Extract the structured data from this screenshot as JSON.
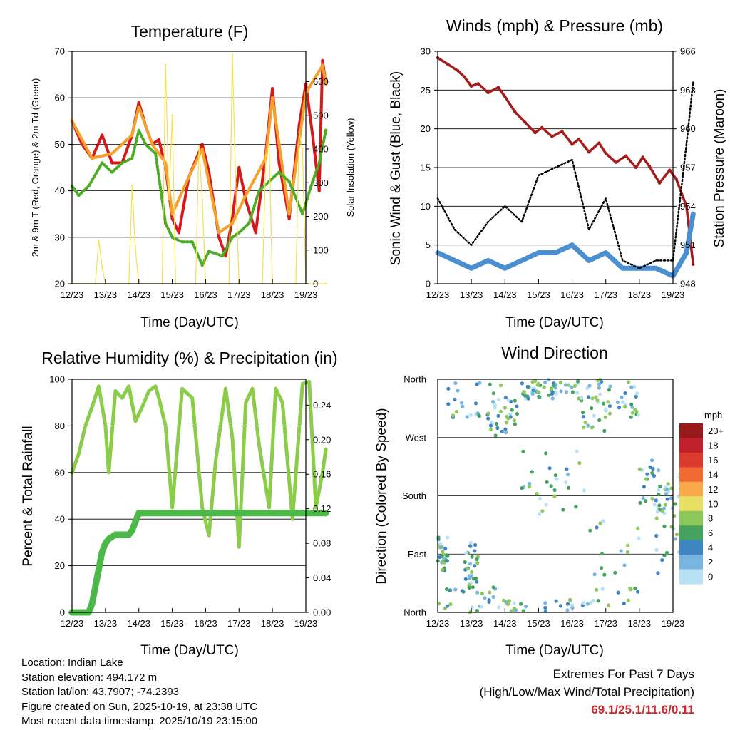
{
  "chart_data": [
    {
      "type": "line",
      "title": "Temperature (F)",
      "xlabel": "Time (Day/UTC)",
      "ylabel": "2m & 9m T (Red, Orange) & 2m Td (Green)",
      "ylabel_right": "Solar Insolation (Yellow)",
      "categories": [
        "12/23",
        "13/23",
        "14/23",
        "15/23",
        "16/23",
        "17/23",
        "18/23",
        "19/23"
      ],
      "ylim": [
        20,
        70
      ],
      "yticks": [
        20,
        30,
        40,
        50,
        60,
        70
      ],
      "y2lim": [
        0,
        690
      ],
      "y2ticks": [
        0,
        100,
        200,
        300,
        400,
        500,
        600
      ],
      "series": [
        {
          "name": "2m T",
          "color": "#d7191c",
          "x": [
            0,
            0.3,
            0.6,
            0.9,
            1.2,
            1.5,
            1.8,
            2.0,
            2.2,
            2.4,
            2.6,
            2.8,
            3.0,
            3.2,
            3.5,
            3.9,
            4.1,
            4.4,
            4.6,
            4.8,
            5.0,
            5.2,
            5.5,
            5.8,
            6.0,
            6.2,
            6.5,
            6.8,
            7.0,
            7.2,
            7.4,
            7.5,
            7.6
          ],
          "values": [
            55,
            50,
            47,
            52,
            46,
            46,
            52,
            59,
            54,
            50,
            51,
            45,
            34,
            31,
            43,
            50,
            44,
            30,
            26,
            34,
            45,
            38,
            31,
            48,
            62,
            46,
            34,
            54,
            63,
            52,
            40,
            68,
            63
          ]
        },
        {
          "name": "9m T",
          "color": "#f4a02c",
          "x": [
            0,
            0.6,
            1.2,
            1.8,
            2.0,
            2.4,
            2.8,
            3.0,
            3.5,
            3.9,
            4.4,
            4.8,
            5.2,
            5.8,
            6.0,
            6.5,
            7.0,
            7.5,
            7.6
          ],
          "values": [
            55,
            47,
            48,
            52,
            58,
            50,
            46,
            35,
            43,
            49,
            31,
            33,
            39,
            47,
            60,
            35,
            61,
            67,
            63
          ]
        },
        {
          "name": "2m Td",
          "color": "#4dac26",
          "x": [
            0,
            0.2,
            0.5,
            0.9,
            1.2,
            1.5,
            1.8,
            2.0,
            2.2,
            2.5,
            2.8,
            3.0,
            3.3,
            3.6,
            3.9,
            4.1,
            4.5,
            4.8,
            5.0,
            5.3,
            5.6,
            5.9,
            6.2,
            6.5,
            6.9,
            7.2,
            7.4,
            7.6
          ],
          "values": [
            41,
            39,
            41,
            46,
            44,
            46,
            47,
            53,
            50,
            48,
            33,
            30,
            29,
            29,
            24,
            27,
            26,
            30,
            31,
            33,
            40,
            42,
            44,
            42,
            35,
            42,
            46,
            53
          ]
        },
        {
          "name": "Solar Insolation",
          "color": "#f5e050",
          "axis": "right",
          "x": [
            0,
            0.7,
            0.8,
            0.9,
            1.0,
            1.7,
            1.8,
            1.9,
            2.0,
            2.7,
            2.8,
            2.9,
            3.0,
            3.1,
            3.7,
            3.8,
            3.9,
            4.0,
            4.7,
            4.8,
            4.9,
            5.0,
            5.7,
            5.8,
            5.9,
            6.0,
            6.7,
            6.8,
            6.9,
            7.0,
            7.6
          ],
          "values": [
            0,
            0,
            130,
            50,
            0,
            0,
            290,
            100,
            0,
            0,
            650,
            250,
            500,
            0,
            0,
            410,
            250,
            0,
            0,
            680,
            300,
            0,
            0,
            380,
            420,
            0,
            0,
            450,
            400,
            0,
            0
          ]
        }
      ]
    },
    {
      "type": "line",
      "title": "Winds (mph) & Pressure (mb)",
      "xlabel": "Time (Day/UTC)",
      "ylabel": "Sonic Wind & Gust (Blue, Black)",
      "ylabel_right": "Station Pressure (Maroon)",
      "categories": [
        "12/23",
        "13/23",
        "14/23",
        "15/23",
        "16/23",
        "17/23",
        "18/23",
        "19/23"
      ],
      "ylim": [
        0,
        30
      ],
      "yticks": [
        0,
        5,
        10,
        15,
        20,
        25,
        30
      ],
      "y2lim": [
        948,
        966
      ],
      "y2ticks": [
        948,
        951,
        954,
        957,
        960,
        963,
        966
      ],
      "series": [
        {
          "name": "Station Pressure",
          "color": "#a51c1c",
          "axis": "right",
          "x": [
            0,
            0.3,
            0.6,
            0.8,
            1.0,
            1.2,
            1.5,
            1.8,
            2.0,
            2.3,
            2.6,
            2.9,
            3.1,
            3.4,
            3.7,
            4.0,
            4.2,
            4.5,
            4.8,
            5.0,
            5.3,
            5.6,
            5.9,
            6.1,
            6.3,
            6.6,
            6.9,
            7.1,
            7.4,
            7.6
          ],
          "values": [
            965.5,
            965,
            964.5,
            964,
            963.3,
            963.5,
            962.8,
            963.2,
            962.5,
            961.3,
            960.5,
            959.7,
            960.1,
            959.4,
            959.8,
            958.8,
            959.2,
            958.2,
            958.9,
            958.1,
            957.4,
            957.9,
            957.0,
            957.8,
            957.1,
            955.8,
            956.8,
            956.1,
            954.0,
            949.5
          ]
        },
        {
          "name": "Sonic Wind",
          "color": "#4a90d0",
          "x": [
            0,
            0.5,
            1.0,
            1.5,
            2.0,
            2.5,
            3.0,
            3.5,
            4.0,
            4.5,
            5.0,
            5.5,
            6.0,
            6.5,
            7.0,
            7.4,
            7.6
          ],
          "values": [
            4,
            3,
            2,
            3,
            2,
            3,
            4,
            4,
            5,
            3,
            4,
            2,
            2,
            2,
            1,
            4,
            9
          ]
        },
        {
          "name": "Gust",
          "color": "#000000",
          "x": [
            0,
            0.5,
            1.0,
            1.5,
            2.0,
            2.5,
            3.0,
            3.5,
            4.0,
            4.5,
            5.0,
            5.5,
            6.0,
            6.5,
            7.0,
            7.4,
            7.6
          ],
          "values": [
            11,
            7,
            5,
            8,
            10,
            8,
            14,
            15,
            16,
            7,
            11,
            3,
            2,
            3,
            3,
            18,
            26
          ]
        }
      ]
    },
    {
      "type": "line",
      "title": "Relative Humidity (%) & Precipitation (in)",
      "xlabel": "Time (Day/UTC)",
      "ylabel": "Percent & Total Rainfall",
      "categories": [
        "12/23",
        "13/23",
        "14/23",
        "15/23",
        "16/23",
        "17/23",
        "18/23",
        "19/23"
      ],
      "ylim": [
        0,
        100
      ],
      "yticks": [
        0,
        20,
        40,
        60,
        80,
        100
      ],
      "y2lim": [
        0,
        0.27
      ],
      "y2ticks": [
        0.0,
        0.04,
        0.08,
        0.12,
        0.16,
        0.2,
        0.24
      ],
      "series": [
        {
          "name": "Relative Humidity",
          "color": "#8ccc4b",
          "x": [
            0,
            0.2,
            0.4,
            0.6,
            0.8,
            1.0,
            1.1,
            1.3,
            1.5,
            1.7,
            1.9,
            2.1,
            2.3,
            2.5,
            2.6,
            2.8,
            3.0,
            3.3,
            3.6,
            3.9,
            4.1,
            4.3,
            4.6,
            4.8,
            5.0,
            5.2,
            5.4,
            5.6,
            5.9,
            6.1,
            6.3,
            6.6,
            6.9,
            7.1,
            7.3,
            7.5,
            7.6
          ],
          "values": [
            60,
            68,
            80,
            88,
            97,
            80,
            60,
            95,
            92,
            97,
            82,
            88,
            95,
            97,
            92,
            80,
            45,
            96,
            92,
            45,
            33,
            65,
            96,
            75,
            28,
            90,
            96,
            72,
            45,
            96,
            90,
            40,
            98,
            99,
            45,
            60,
            70
          ]
        },
        {
          "name": "Total Rainfall",
          "color": "#4cb848",
          "axis": "right",
          "x": [
            0,
            0.5,
            0.6,
            0.7,
            0.8,
            0.9,
            1.0,
            1.1,
            1.3,
            1.5,
            1.7,
            1.8,
            1.9,
            2.0,
            7.6
          ],
          "values": [
            0,
            0,
            0.01,
            0.03,
            0.05,
            0.07,
            0.08,
            0.085,
            0.09,
            0.09,
            0.09,
            0.095,
            0.105,
            0.115,
            0.115
          ]
        }
      ]
    },
    {
      "type": "scatter",
      "title": "Wind Direction",
      "xlabel": "Time (Day/UTC)",
      "ylabel": "Direction (Colored By Speed)",
      "categories": [
        "12/23",
        "13/23",
        "14/23",
        "15/23",
        "16/23",
        "17/23",
        "18/23",
        "19/23"
      ],
      "yticks_labels": [
        "North",
        "East",
        "South",
        "West",
        "North"
      ],
      "ylim": [
        0,
        360
      ],
      "colorbar": {
        "title": "mph",
        "labels": [
          "20+",
          "18",
          "16",
          "14",
          "12",
          "10",
          "8",
          "6",
          "4",
          "2",
          "0"
        ],
        "colors": [
          "#99191b",
          "#c0202a",
          "#dd3a2e",
          "#f06a32",
          "#f9a84a",
          "#e8e063",
          "#8cc95a",
          "#45a35f",
          "#3e85c2",
          "#78b5e1",
          "#b9e1f5"
        ]
      }
    }
  ],
  "station_info": {
    "location": "Location: Indian Lake",
    "elevation": "Station elevation: 494.172 m",
    "latlon": "Station lat/lon: 43.7907; -74.2393",
    "created": "Figure created on Sun, 2025-10-19, at 23:38 UTC",
    "recent": "Most recent data timestamp: 2025/10/19 23:15:00"
  },
  "extremes": {
    "title": "Extremes For Past 7 Days",
    "subtitle": "(High/Low/Max Wind/Total Precipitation)",
    "values": "69.1/25.1/11.6/0.11"
  }
}
